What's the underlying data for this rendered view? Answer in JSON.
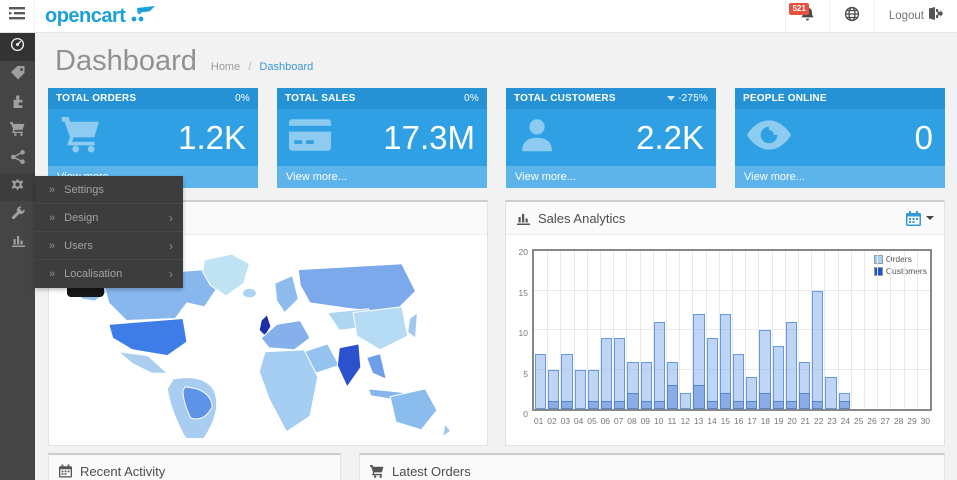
{
  "topbar": {
    "logo_text": "opencart",
    "notification_count": "521",
    "logout_label": "Logout"
  },
  "page": {
    "title": "Dashboard",
    "breadcrumb": {
      "home": "Home",
      "current": "Dashboard"
    }
  },
  "sidebar": {
    "items": [
      {
        "name": "dashboard",
        "active": true
      },
      {
        "name": "catalog"
      },
      {
        "name": "extensions"
      },
      {
        "name": "sales"
      },
      {
        "name": "marketing"
      },
      {
        "name": "system",
        "open": true
      },
      {
        "name": "tools"
      },
      {
        "name": "reports"
      }
    ]
  },
  "flyout": {
    "items": [
      {
        "label": "Settings",
        "has_children": false
      },
      {
        "label": "Design",
        "has_children": true
      },
      {
        "label": "Users",
        "has_children": true
      },
      {
        "label": "Localisation",
        "has_children": true
      }
    ],
    "chevron": "›",
    "angles": "»"
  },
  "stat_cards": [
    {
      "title": "TOTAL ORDERS",
      "change": "0%",
      "value": "1.2K",
      "icon": "shopping-cart-icon",
      "footer": "View more..."
    },
    {
      "title": "TOTAL SALES",
      "change": "0%",
      "value": "17.3M",
      "icon": "credit-card-icon",
      "footer": "View more..."
    },
    {
      "title": "TOTAL CUSTOMERS",
      "change": "-275%",
      "direction": "down",
      "value": "2.2K",
      "icon": "user-icon",
      "footer": "View more..."
    },
    {
      "title": "PEOPLE ONLINE",
      "change": "",
      "value": "0",
      "icon": "eye-icon",
      "footer": "View more..."
    }
  ],
  "panels": {
    "sales_analytics": {
      "title": "Sales Analytics"
    },
    "recent_activity": {
      "title": "Recent Activity"
    },
    "latest_orders": {
      "title": "Latest Orders"
    }
  },
  "chart_data": {
    "type": "bar",
    "title": "Sales Analytics",
    "x": [
      "01",
      "02",
      "03",
      "04",
      "05",
      "06",
      "07",
      "08",
      "09",
      "10",
      "11",
      "12",
      "13",
      "14",
      "15",
      "16",
      "17",
      "18",
      "19",
      "20",
      "21",
      "22",
      "23",
      "24",
      "25",
      "26",
      "27",
      "28",
      "29",
      "30"
    ],
    "series": [
      {
        "name": "Orders",
        "legend_color": "#a6d2f5",
        "values": [
          7,
          5,
          7,
          5,
          5,
          9,
          9,
          6,
          6,
          11,
          6,
          2,
          12,
          9,
          12,
          7,
          4,
          10,
          8,
          11,
          6,
          15,
          4,
          2,
          0,
          0,
          0,
          0,
          0,
          0
        ]
      },
      {
        "name": "Customers",
        "legend_color": "#1a55cf",
        "values": [
          0,
          1,
          1,
          0,
          1,
          1,
          1,
          2,
          1,
          1,
          3,
          0,
          3,
          1,
          2,
          1,
          1,
          2,
          1,
          1,
          2,
          1,
          0,
          1,
          0,
          0,
          0,
          0,
          0,
          0
        ]
      }
    ],
    "ylim": [
      0,
      20
    ],
    "yticks": [
      0,
      5,
      10,
      15,
      20
    ],
    "legend_position": "top-right",
    "grid": true,
    "xlabel": "",
    "ylabel": ""
  },
  "colors": {
    "accent_blue": "#1ba0d9",
    "card_body": "#2fa0e4",
    "card_header": "#2492d4",
    "card_footer": "#5cb4ea",
    "badge_red": "#e8503f",
    "sidebar_bg": "#454545"
  }
}
